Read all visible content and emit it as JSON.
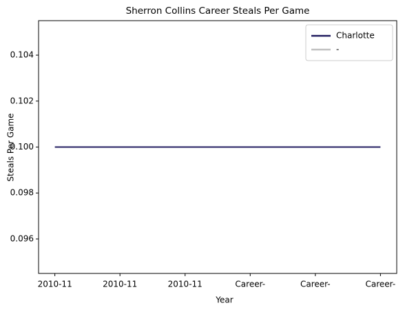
{
  "chart_data": {
    "type": "line",
    "title": "Sherron Collins Career Steals Per Game",
    "xlabel": "Year",
    "ylabel": "Steals Per Game",
    "categories": [
      "2010-11",
      "2010-11",
      "2010-11",
      "Career-",
      "Career-",
      "Career-"
    ],
    "series": [
      {
        "name": "Charlotte",
        "color": "#1f1a5e",
        "values": [
          0.1,
          0.1,
          0.1,
          0.1,
          0.1,
          0.1
        ]
      },
      {
        "name": "-",
        "color": "#c0c0c0",
        "values": [
          null,
          null,
          null,
          null,
          null,
          null
        ]
      }
    ],
    "ylim": [
      0.0945,
      0.1055
    ],
    "yticks": [
      0.096,
      0.098,
      {
        "value": 0.1,
        "label": "0.100"
      },
      0.102,
      0.104
    ],
    "legend": "upper right",
    "grid": false
  }
}
